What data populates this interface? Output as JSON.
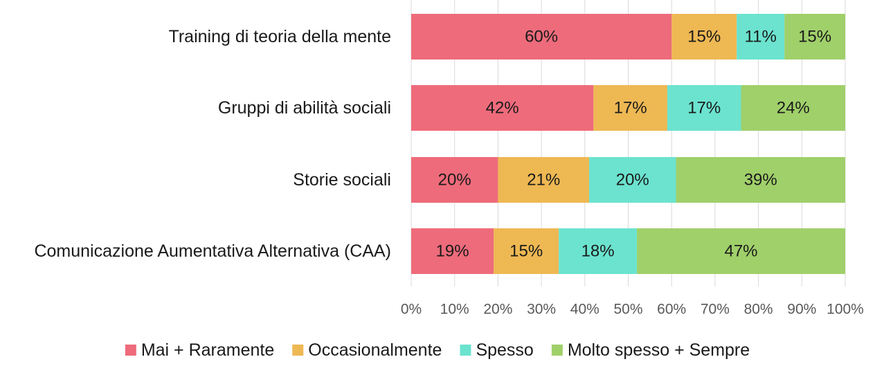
{
  "chart_data": {
    "type": "bar",
    "orientation": "horizontal",
    "stacked": true,
    "percent_stacked": true,
    "categories": [
      "Training di teoria della mente",
      "Gruppi di abilità sociali",
      "Storie sociali",
      "Comunicazione Aumentativa Alternativa (CAA)"
    ],
    "series": [
      {
        "name": "Mai + Raramente",
        "color": "#EE6B7B",
        "values": [
          60,
          42,
          20,
          19
        ],
        "labels": [
          "60%",
          "42%",
          "20%",
          "19%"
        ]
      },
      {
        "name": "Occasionalmente",
        "color": "#EEB853",
        "values": [
          15,
          17,
          21,
          15
        ],
        "labels": [
          "15%",
          "17%",
          "21%",
          "15%"
        ]
      },
      {
        "name": "Spesso",
        "color": "#6BE3CF",
        "values": [
          11,
          17,
          20,
          18
        ],
        "labels": [
          "11%",
          "17%",
          "20%",
          "18%"
        ]
      },
      {
        "name": "Molto spesso + Sempre",
        "color": "#A0D06A",
        "values": [
          15,
          24,
          39,
          47
        ],
        "labels": [
          "15%",
          "24%",
          "39%",
          "47%"
        ]
      }
    ],
    "xlim": [
      0,
      100
    ],
    "xticks": [
      0,
      10,
      20,
      30,
      40,
      50,
      60,
      70,
      80,
      90,
      100
    ],
    "xtick_labels": [
      "0%",
      "10%",
      "20%",
      "30%",
      "40%",
      "50%",
      "60%",
      "70%",
      "80%",
      "90%",
      "100%"
    ],
    "grid": true,
    "legend_position": "bottom",
    "title": "",
    "xlabel": "",
    "ylabel": ""
  }
}
